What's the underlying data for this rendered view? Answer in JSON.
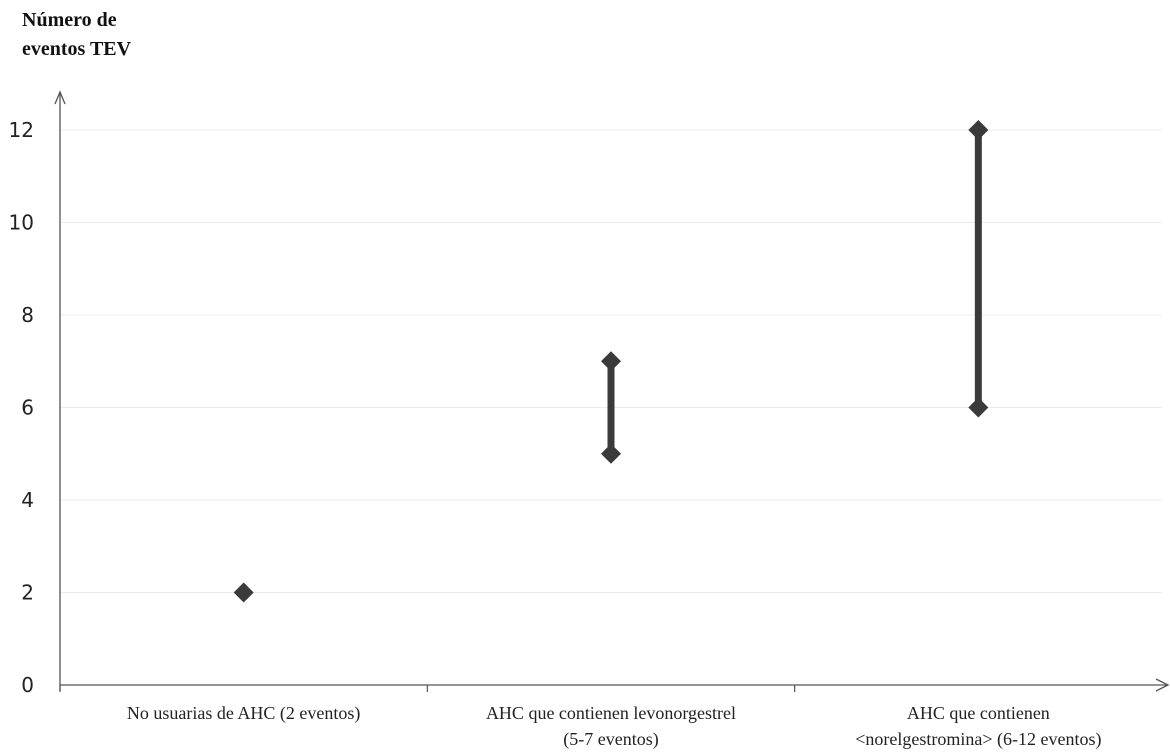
{
  "chart_data": {
    "type": "scatter",
    "ylabel_lines": [
      "Número de",
      "eventos TEV"
    ],
    "xlabel": "",
    "ylim": [
      0,
      12
    ],
    "yticks": [
      0,
      2,
      4,
      6,
      8,
      10,
      12
    ],
    "grid": true,
    "categories": [
      {
        "label_lines": [
          "No usuarias de AHC (2 eventos)"
        ]
      },
      {
        "label_lines": [
          "AHC que contienen levonorgestrel",
          "(5-7 eventos)"
        ]
      },
      {
        "label_lines": [
          "AHC que contienen",
          "<norelgestromina> (6-12 eventos)"
        ]
      }
    ],
    "ranges": [
      {
        "category_index": 0,
        "low": 2,
        "high": 2
      },
      {
        "category_index": 1,
        "low": 5,
        "high": 7
      },
      {
        "category_index": 2,
        "low": 6,
        "high": 12
      }
    ],
    "colors": {
      "marker": "#3a3a3a",
      "range_line": "#3a3a3a",
      "grid": "#ececec",
      "axis": "#555555"
    }
  }
}
